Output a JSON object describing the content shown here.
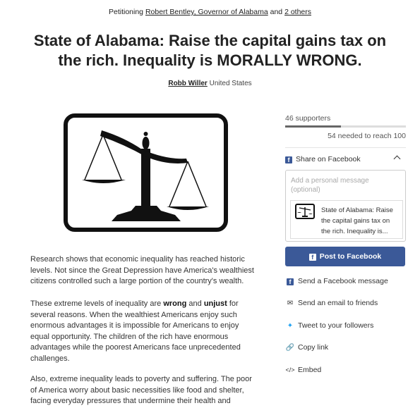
{
  "header": {
    "prefix": "Petitioning",
    "target": "Robert Bentley, Governor of Alabama",
    "conjunction": "and",
    "others": "2 others"
  },
  "petition": {
    "title": "State of Alabama: Raise the capital gains tax on the rich. Inequality is MORALLY WRONG.",
    "author_name": "Robb Willer",
    "author_location": "United States"
  },
  "body": {
    "p1": "Research shows that economic inequality has reached historic levels. Not since the Great Depression have America's wealthiest citizens controlled such a large portion of the country's wealth.",
    "p2_a": "These extreme levels of inequality are",
    "p2_wrong": "wrong",
    "p2_and": "and",
    "p2_unjust": "unjust",
    "p2_b": "for several reasons. When the wealthiest Americans enjoy such enormous advantages it is impossible for Americans to enjoy equal opportunity. The children of the rich have enormous advantages while the poorest Americans face unprecedented challenges.",
    "p3": "Also, extreme inequality leads to poverty and suffering. The poor of America worry about basic necessities like food and shelter, facing everyday pressures that undermine their health and"
  },
  "sidebar": {
    "supporters": "46 supporters",
    "progress_fraction": 0.46,
    "needed": "54 needed to reach 100",
    "share_facebook": "Share on Facebook",
    "message_placeholder": "Add a personal message (optional)",
    "preview_text": "State of Alabama: Raise the capital gains tax on the rich. Inequality is...",
    "post_button": "Post to Facebook",
    "actions": {
      "fb_message": "Send a Facebook message",
      "email": "Send an email to friends",
      "tweet": "Tweet to your followers",
      "copy": "Copy link",
      "embed": "Embed"
    }
  },
  "colors": {
    "facebook": "#3b5998",
    "twitter": "#1da1f2"
  }
}
